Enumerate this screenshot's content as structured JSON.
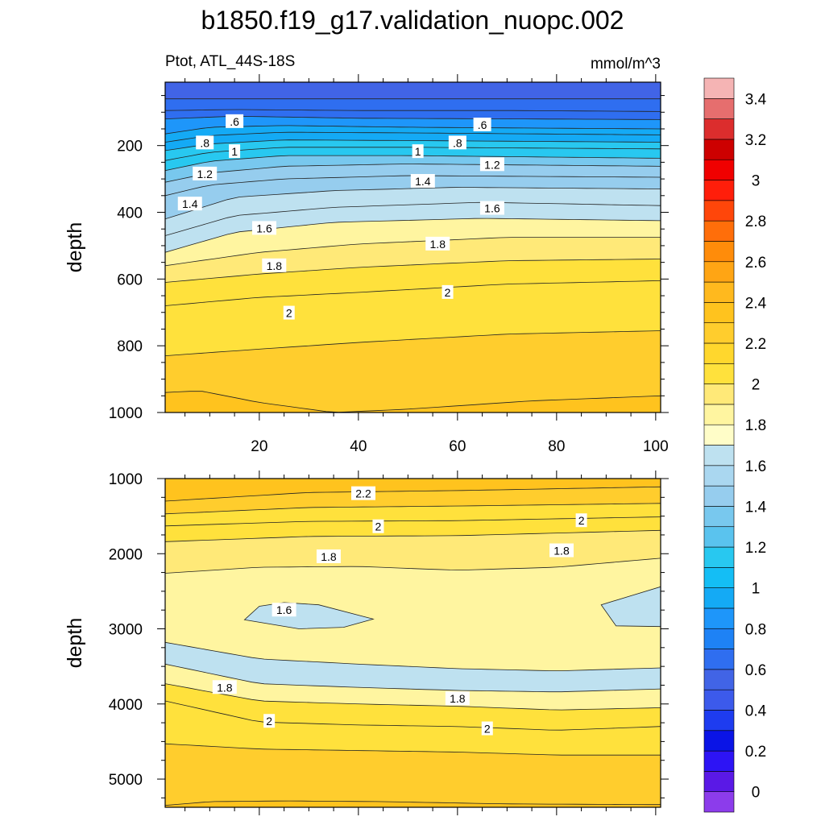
{
  "title": "b1850.f19_g17.validation_nuopc.002",
  "subtitle_left": "Ptot, ATL_44S-18S",
  "subtitle_right": "mmol/m^3",
  "chart_data": [
    {
      "type": "contour",
      "panel": "upper",
      "variable": "Ptot",
      "region": "ATL_44S-18S",
      "units": "mmol/m^3",
      "xlabel": "",
      "ylabel": "depth",
      "xlim": [
        1,
        101
      ],
      "ylim": [
        1000,
        10
      ],
      "y_reversed": true,
      "xticks": [
        20,
        40,
        60,
        80,
        100
      ],
      "yticks": [
        200,
        400,
        600,
        800,
        1000
      ],
      "contour_levels": [
        0.5,
        0.6,
        0.7,
        0.8,
        0.9,
        1.0,
        1.1,
        1.2,
        1.3,
        1.4,
        1.5,
        1.6,
        1.7,
        1.8,
        1.9,
        2.0,
        2.1,
        2.2
      ],
      "isolines": [
        {
          "level": 0.5,
          "x": [
            1,
            101
          ],
          "depth": [
            60,
            60
          ]
        },
        {
          "level": 0.6,
          "x": [
            1,
            15,
            40,
            70,
            101
          ],
          "depth": [
            95,
            92,
            95,
            95,
            98
          ]
        },
        {
          "level": 0.7,
          "x": [
            1,
            15,
            40,
            70,
            101
          ],
          "depth": [
            120,
            112,
            118,
            120,
            122
          ]
        },
        {
          "level": 0.8,
          "x": [
            1,
            10,
            25,
            50,
            101
          ],
          "depth": [
            165,
            145,
            140,
            145,
            150
          ]
        },
        {
          "level": 0.9,
          "x": [
            1,
            10,
            25,
            50,
            101
          ],
          "depth": [
            190,
            170,
            160,
            162,
            168
          ]
        },
        {
          "level": 1.0,
          "x": [
            1,
            10,
            25,
            50,
            101
          ],
          "depth": [
            215,
            195,
            183,
            185,
            190
          ]
        },
        {
          "level": 1.1,
          "x": [
            1,
            10,
            25,
            50,
            101
          ],
          "depth": [
            245,
            220,
            205,
            205,
            210
          ]
        },
        {
          "level": 1.2,
          "x": [
            1,
            10,
            25,
            50,
            101
          ],
          "depth": [
            275,
            247,
            230,
            230,
            238
          ]
        },
        {
          "level": 1.3,
          "x": [
            1,
            10,
            25,
            50,
            101
          ],
          "depth": [
            310,
            282,
            262,
            255,
            262
          ]
        },
        {
          "level": 1.4,
          "x": [
            1,
            10,
            25,
            50,
            101
          ],
          "depth": [
            350,
            318,
            300,
            290,
            295
          ]
        },
        {
          "level": 1.5,
          "x": [
            1,
            15,
            35,
            60,
            101
          ],
          "depth": [
            420,
            355,
            335,
            325,
            330
          ]
        },
        {
          "level": 1.6,
          "x": [
            1,
            15,
            35,
            65,
            101
          ],
          "depth": [
            470,
            410,
            385,
            370,
            380
          ]
        },
        {
          "level": 1.7,
          "x": [
            1,
            15,
            35,
            65,
            101
          ],
          "depth": [
            520,
            460,
            430,
            418,
            425
          ]
        },
        {
          "level": 1.8,
          "x": [
            1,
            20,
            40,
            70,
            101
          ],
          "depth": [
            560,
            520,
            495,
            475,
            475
          ]
        },
        {
          "level": 1.9,
          "x": [
            1,
            20,
            40,
            70,
            101
          ],
          "depth": [
            610,
            585,
            565,
            545,
            540
          ]
        },
        {
          "level": 2.0,
          "x": [
            1,
            20,
            40,
            70,
            101
          ],
          "depth": [
            680,
            655,
            640,
            615,
            605
          ]
        },
        {
          "level": 2.1,
          "x": [
            1,
            20,
            40,
            70,
            101
          ],
          "depth": [
            830,
            810,
            790,
            765,
            755
          ]
        },
        {
          "level": 2.2,
          "x": [
            1,
            8,
            20,
            35,
            50,
            75,
            101
          ],
          "depth": [
            940,
            935,
            970,
            1000,
            990,
            965,
            950
          ]
        }
      ],
      "line_labels": [
        {
          "text": ".6",
          "x": 15,
          "depth": 128
        },
        {
          "text": ".6",
          "x": 65,
          "depth": 138
        },
        {
          "text": ".8",
          "x": 9,
          "depth": 192
        },
        {
          "text": ".8",
          "x": 60,
          "depth": 192
        },
        {
          "text": "1",
          "x": 15,
          "depth": 218
        },
        {
          "text": "1",
          "x": 52,
          "depth": 218
        },
        {
          "text": "1.2",
          "x": 9,
          "depth": 285
        },
        {
          "text": "1.2",
          "x": 67,
          "depth": 257
        },
        {
          "text": "1.4",
          "x": 6,
          "depth": 375
        },
        {
          "text": "1.4",
          "x": 53,
          "depth": 307
        },
        {
          "text": "1.6",
          "x": 21,
          "depth": 448
        },
        {
          "text": "1.6",
          "x": 67,
          "depth": 388
        },
        {
          "text": "1.8",
          "x": 23,
          "depth": 560
        },
        {
          "text": "1.8",
          "x": 56,
          "depth": 495
        },
        {
          "text": "2",
          "x": 26,
          "depth": 702
        },
        {
          "text": "2",
          "x": 58,
          "depth": 640
        }
      ]
    },
    {
      "type": "contour",
      "panel": "lower",
      "variable": "Ptot",
      "region": "ATL_44S-18S",
      "units": "mmol/m^3",
      "xlabel": "",
      "ylabel": "depth",
      "xlim": [
        1,
        101
      ],
      "ylim": [
        5375,
        1000
      ],
      "y_reversed": true,
      "xticks": [
        20,
        40,
        60,
        80,
        100
      ],
      "yticks": [
        1000,
        2000,
        3000,
        4000,
        5000
      ],
      "contour_levels": [
        1.5,
        1.6,
        1.7,
        1.8,
        1.9,
        2.0,
        2.1,
        2.2
      ],
      "isolines": [
        {
          "level": 2.2,
          "x": [
            1,
            30,
            60,
            101
          ],
          "depth": [
            1300,
            1185,
            1160,
            1110
          ]
        },
        {
          "level": 2.1,
          "x": [
            1,
            30,
            60,
            101
          ],
          "depth": [
            1470,
            1385,
            1365,
            1330
          ]
        },
        {
          "level": 2.0,
          "x": [
            1,
            30,
            60,
            101
          ],
          "depth": [
            1630,
            1570,
            1560,
            1510
          ]
        },
        {
          "level": 1.9,
          "x": [
            1,
            30,
            60,
            101
          ],
          "depth": [
            1840,
            1770,
            1760,
            1690
          ]
        },
        {
          "level": 1.8,
          "x": [
            1,
            20,
            40,
            60,
            80,
            101
          ],
          "depth": [
            2260,
            2180,
            2170,
            2220,
            2180,
            2060
          ]
        },
        {
          "level": 1.7,
          "x": [
            1,
            20,
            40,
            60,
            80,
            101
          ],
          "depth": [
            3180,
            3400,
            3470,
            3530,
            3560,
            3520
          ]
        },
        {
          "level": 1.6,
          "x": [
            1,
            20,
            40,
            60,
            80,
            101
          ],
          "depth": [
            3470,
            3730,
            3780,
            3820,
            3840,
            3800
          ]
        },
        {
          "level": 1.9,
          "x": [
            1,
            20,
            40,
            60,
            80,
            101
          ],
          "depth": [
            3730,
            3960,
            4000,
            4030,
            4080,
            4050
          ]
        },
        {
          "level": 2.0,
          "x": [
            1,
            20,
            40,
            60,
            80,
            101
          ],
          "depth": [
            3960,
            4240,
            4280,
            4300,
            4350,
            4300
          ]
        },
        {
          "level": 2.1,
          "x": [
            1,
            20,
            40,
            60,
            80,
            101
          ],
          "depth": [
            4530,
            4600,
            4620,
            4640,
            4680,
            4680
          ]
        },
        {
          "level": 2.2,
          "x": [
            1,
            10,
            25,
            45,
            70,
            101
          ],
          "depth": [
            5350,
            5300,
            5290,
            5300,
            5330,
            5340
          ]
        }
      ],
      "closed_regions": [
        {
          "level": 1.5,
          "x": [
            17,
            20,
            25,
            32,
            43,
            37,
            28,
            17
          ],
          "depth": [
            2880,
            2700,
            2650,
            2680,
            2870,
            2980,
            3000,
            2880
          ]
        },
        {
          "level": 1.5,
          "x": [
            101,
            95,
            89,
            92,
            101
          ],
          "depth": [
            2440,
            2560,
            2680,
            2960,
            2970
          ]
        }
      ],
      "line_labels": [
        {
          "text": "2.2",
          "x": 41,
          "depth": 1200
        },
        {
          "text": "2",
          "x": 44,
          "depth": 1640
        },
        {
          "text": "2",
          "x": 85,
          "depth": 1560
        },
        {
          "text": "1.8",
          "x": 34,
          "depth": 2040
        },
        {
          "text": "1.8",
          "x": 81,
          "depth": 1960
        },
        {
          "text": "1.6",
          "x": 25,
          "depth": 2750
        },
        {
          "text": "1.8",
          "x": 13,
          "depth": 3780
        },
        {
          "text": "1.8",
          "x": 60,
          "depth": 3930
        },
        {
          "text": "2",
          "x": 22,
          "depth": 4230
        },
        {
          "text": "2",
          "x": 66,
          "depth": 4330
        }
      ]
    }
  ],
  "colorbar": {
    "labels": [
      "0",
      "0.2",
      "0.4",
      "0.6",
      "0.8",
      "1",
      "1.2",
      "1.4",
      "1.6",
      "1.8",
      "2",
      "2.2",
      "2.4",
      "2.6",
      "2.8",
      "3",
      "3.2",
      "3.4"
    ],
    "colors": [
      "#8c3ceb",
      "#5a19e6",
      "#2d14f5",
      "#0a14e6",
      "#1e3cf0",
      "#3c5aeb",
      "#4164e6",
      "#2f6ef0",
      "#1e82f5",
      "#1e96fa",
      "#14aaf5",
      "#14bef5",
      "#28c8f0",
      "#5ac3ee",
      "#78c8ee",
      "#96cdee",
      "#aad7f0",
      "#bee1f0",
      "#fffdc8",
      "#fff5a0",
      "#ffe978",
      "#ffe13c",
      "#ffd72d",
      "#ffcd2d",
      "#ffc31e",
      "#ffb91e",
      "#ffa514",
      "#ff8c0a",
      "#ff6e0a",
      "#ff460a",
      "#ff1e0a",
      "#f00000",
      "#cd0000",
      "#dc2d2d",
      "#e66e6e",
      "#f5b4b4"
    ]
  }
}
